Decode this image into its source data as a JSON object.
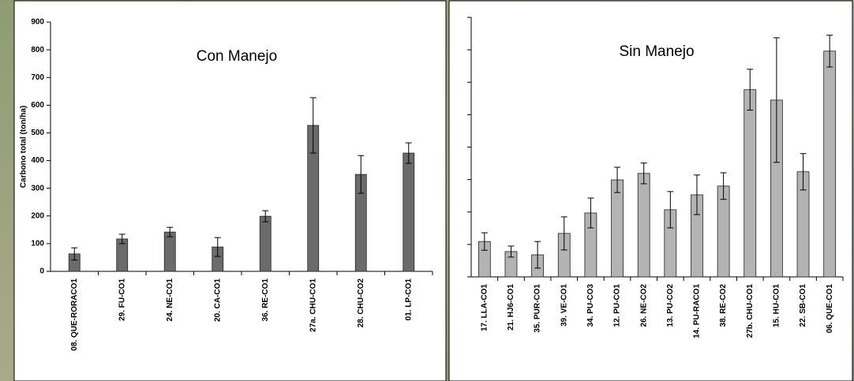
{
  "chart_data": [
    {
      "type": "bar",
      "title": "Con Manejo",
      "ylabel": "Carbono total (ton/ha)",
      "color": "#6b6b6b",
      "categories": [
        "08. QUE-RORACO1",
        "29. FU-CO1",
        "24. NE-CO1",
        "20. CA-CO1",
        "36. RE-CO1",
        "27a. CHU-CO1",
        "28. CHU-CO2",
        "01. LP-CO1"
      ],
      "values": [
        63,
        117,
        142,
        88,
        199,
        527,
        350,
        427
      ],
      "errors": [
        22,
        17,
        17,
        34,
        20,
        100,
        68,
        37
      ],
      "ylim": [
        0,
        900
      ],
      "yticks": [
        0,
        100,
        200,
        300,
        400,
        500,
        600,
        700,
        800,
        900
      ],
      "tick_labels": true
    },
    {
      "type": "bar",
      "title": "Sin Manejo",
      "color": "#b3b3b3",
      "categories": [
        "17. LLA-CO1",
        "21. HJ6-CO1",
        "35. PUR-CO1",
        "39. VE-CO1",
        "34. PU-CO3",
        "12. PU-CO1",
        "26. NE-CO2",
        "13. PU-CO2",
        "14. PU-RACO1",
        "38. RE-CO2",
        "27b. CHU-CO1",
        "15. HU-CO1",
        "22. SB-CO1",
        "06. QUE-CO1"
      ],
      "values": [
        109,
        78,
        68,
        134,
        197,
        299,
        319,
        207,
        253,
        280,
        577,
        545,
        324,
        696
      ],
      "errors": [
        27,
        17,
        41,
        51,
        46,
        39,
        32,
        56,
        61,
        41,
        63,
        192,
        56,
        49
      ],
      "ylim": [
        0,
        800
      ],
      "yticks": [
        0,
        100,
        200,
        300,
        400,
        500,
        600,
        700,
        800
      ],
      "tick_labels": false
    }
  ]
}
